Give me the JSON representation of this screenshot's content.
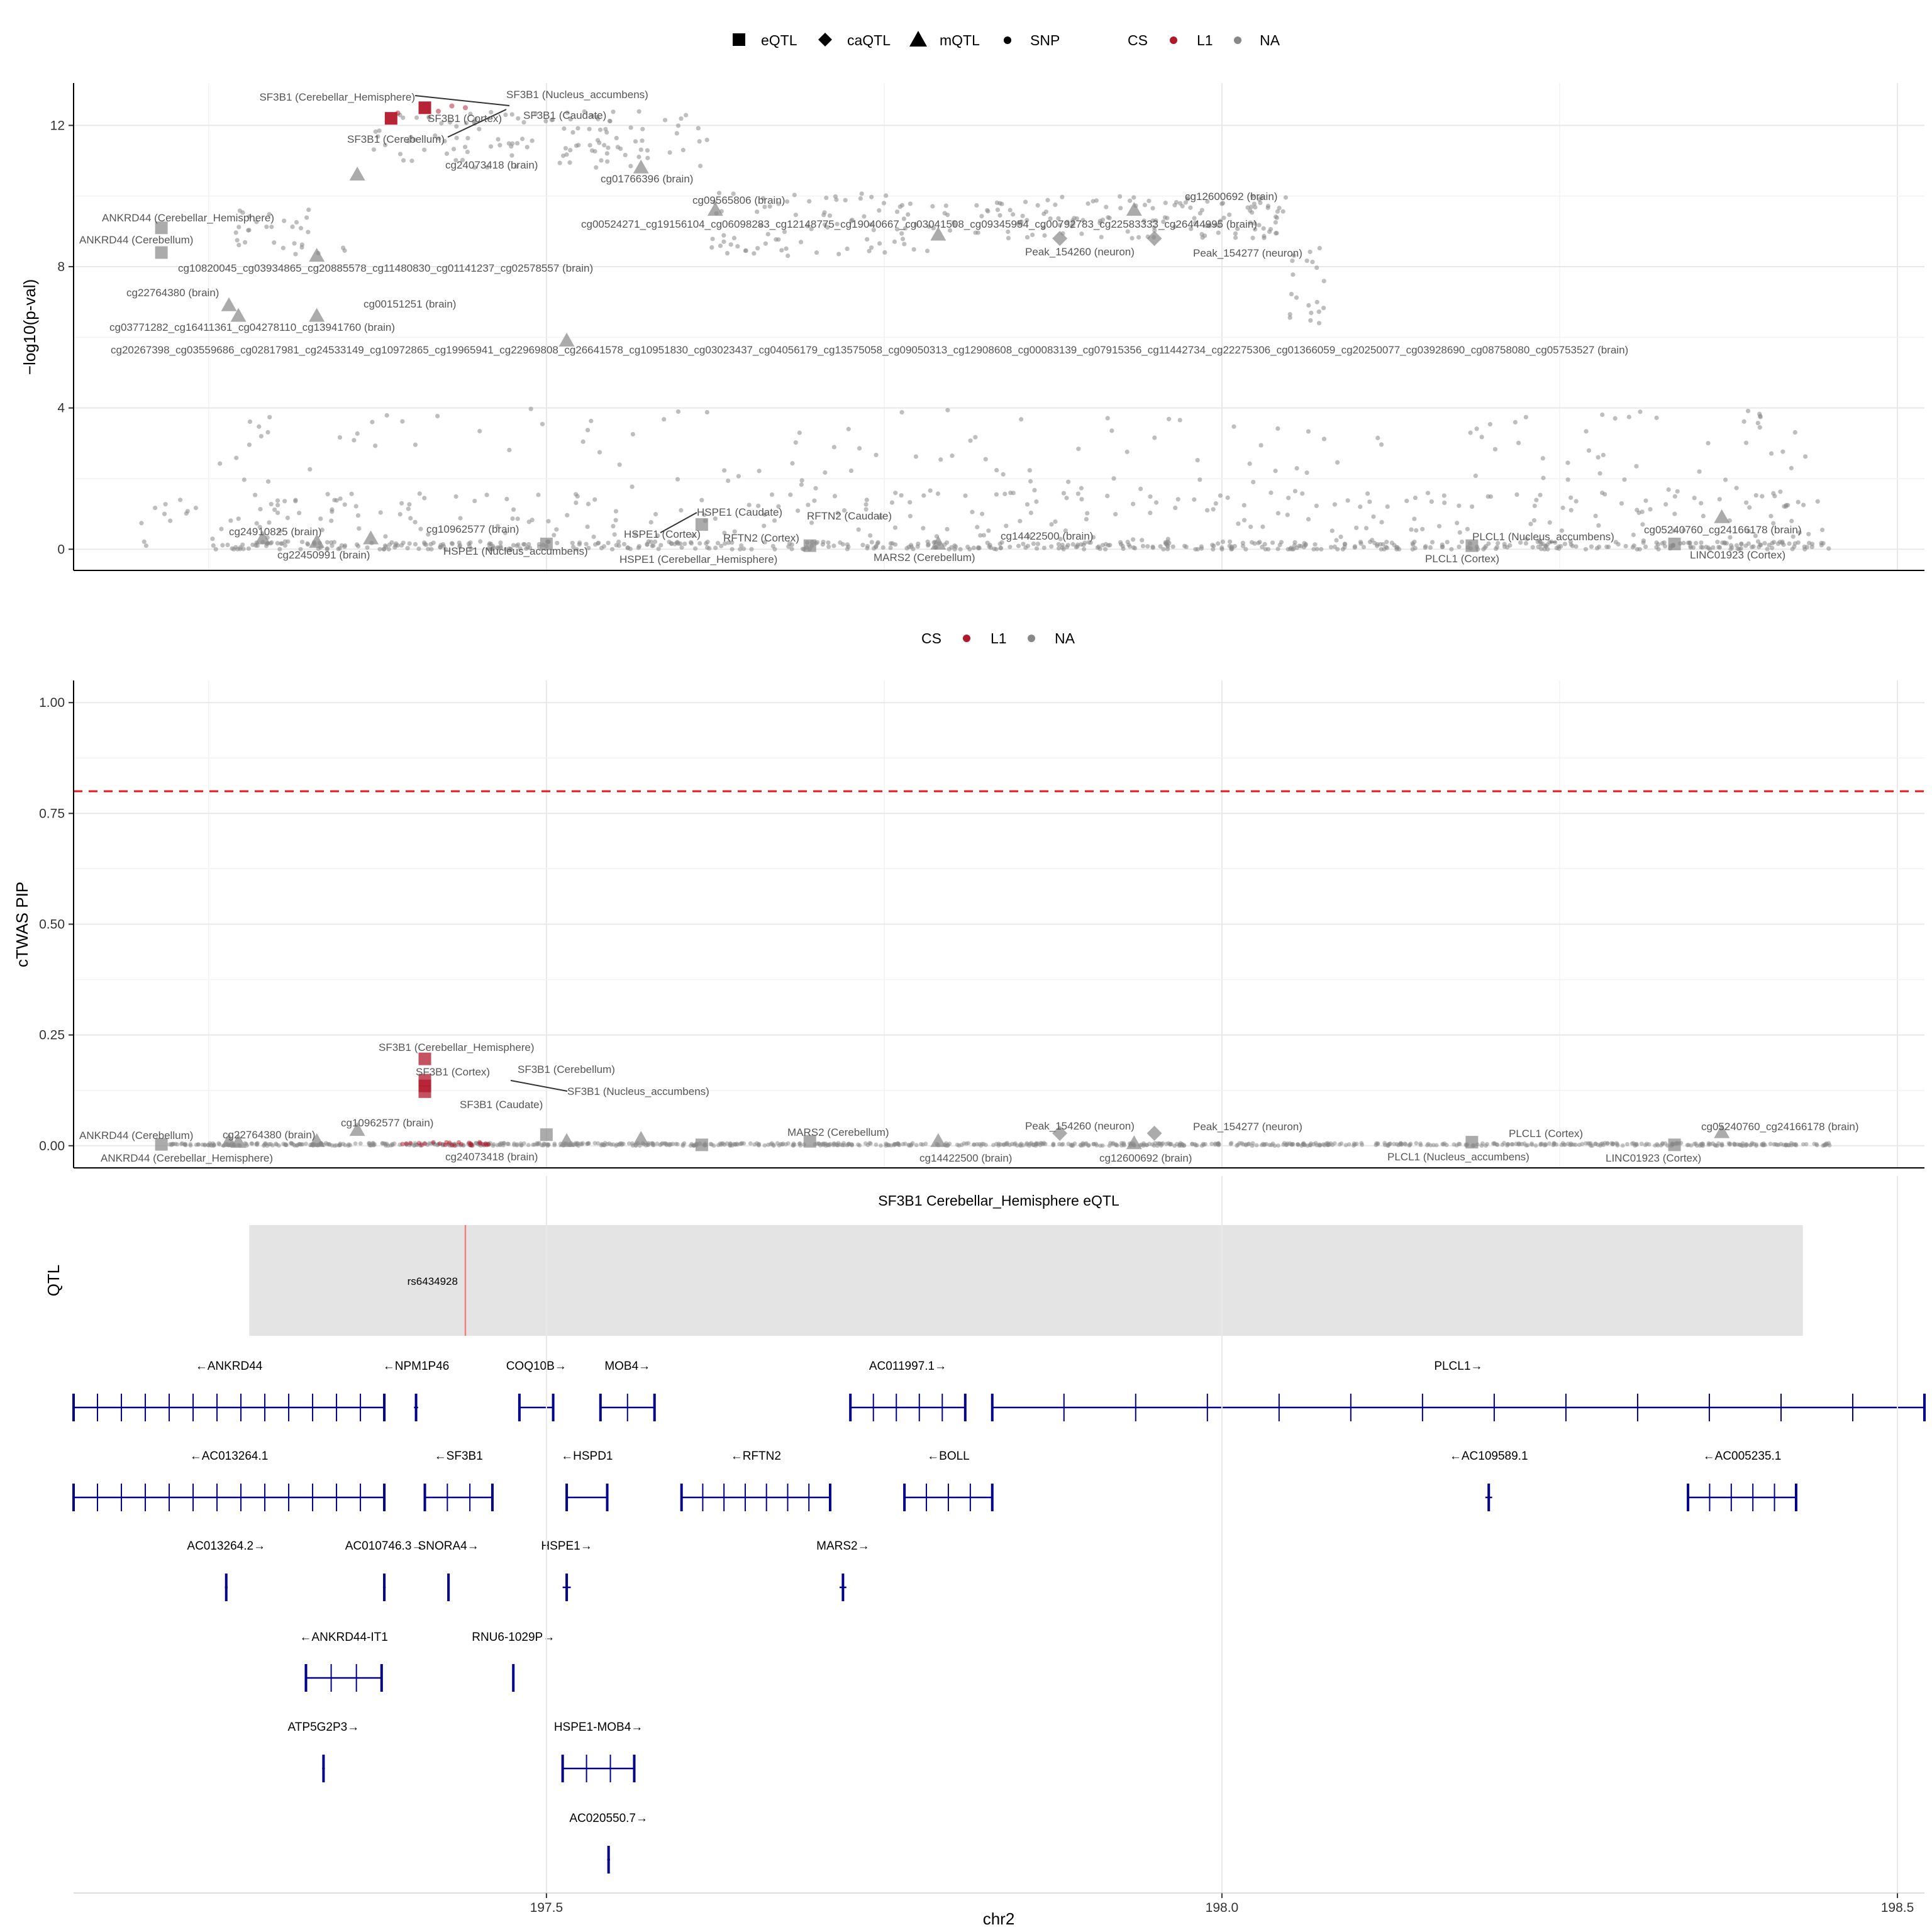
{
  "chart_data": [
    {
      "panel": "qtl_pvalues",
      "type": "scatter",
      "ylabel": "−log10(p-val)",
      "xlim": [
        197.15,
        198.52
      ],
      "ylim": [
        -0.6,
        13.2
      ],
      "yticks": [
        0,
        4,
        8,
        12
      ],
      "legend": {
        "placement": "top",
        "shape_title": "",
        "shapes": [
          {
            "label": "eQTL",
            "shape": "square"
          },
          {
            "label": "caQTL",
            "shape": "diamond"
          },
          {
            "label": "mQTL",
            "shape": "triangle"
          },
          {
            "label": "SNP",
            "shape": "dot"
          }
        ],
        "color_title": "CS",
        "colors": [
          {
            "label": "L1",
            "color": "#b2182b"
          },
          {
            "label": "NA",
            "color": "#888888"
          }
        ]
      },
      "highlight": [
        {
          "x": 197.41,
          "y": 12.5,
          "type": "eQTL",
          "cs": "L1"
        },
        {
          "x": 197.385,
          "y": 12.2,
          "type": "eQTL",
          "cs": "L1"
        },
        {
          "x": 197.39,
          "y": 12.35,
          "type": "SNP",
          "cs": "L1"
        },
        {
          "x": 197.42,
          "y": 12.4,
          "type": "SNP",
          "cs": "L1"
        },
        {
          "x": 197.43,
          "y": 12.55,
          "type": "SNP",
          "cs": "L1"
        },
        {
          "x": 197.44,
          "y": 12.5,
          "type": "SNP",
          "cs": "L1"
        }
      ],
      "features": [
        {
          "x": 197.215,
          "y": 9.1,
          "type": "eQTL"
        },
        {
          "x": 197.215,
          "y": 8.4,
          "type": "eQTL"
        },
        {
          "x": 197.265,
          "y": 6.9,
          "type": "mQTL"
        },
        {
          "x": 197.272,
          "y": 6.6,
          "type": "mQTL"
        },
        {
          "x": 197.36,
          "y": 10.6,
          "type": "mQTL"
        },
        {
          "x": 197.33,
          "y": 8.3,
          "type": "mQTL"
        },
        {
          "x": 197.33,
          "y": 6.6,
          "type": "mQTL"
        },
        {
          "x": 197.515,
          "y": 5.9,
          "type": "mQTL"
        },
        {
          "x": 197.57,
          "y": 10.8,
          "type": "mQTL"
        },
        {
          "x": 197.625,
          "y": 9.6,
          "type": "mQTL"
        },
        {
          "x": 197.79,
          "y": 8.9,
          "type": "mQTL"
        },
        {
          "x": 197.935,
          "y": 9.6,
          "type": "mQTL"
        },
        {
          "x": 197.88,
          "y": 8.8,
          "type": "caQTL"
        },
        {
          "x": 197.95,
          "y": 8.8,
          "type": "caQTL"
        },
        {
          "x": 197.29,
          "y": 0.3,
          "type": "mQTL"
        },
        {
          "x": 197.33,
          "y": 0.2,
          "type": "mQTL"
        },
        {
          "x": 197.37,
          "y": 0.3,
          "type": "mQTL"
        },
        {
          "x": 197.5,
          "y": 0.15,
          "type": "eQTL"
        },
        {
          "x": 197.615,
          "y": 0.7,
          "type": "eQTL"
        },
        {
          "x": 197.695,
          "y": 0.1,
          "type": "eQTL"
        },
        {
          "x": 197.79,
          "y": 0.15,
          "type": "mQTL"
        },
        {
          "x": 198.185,
          "y": 0.1,
          "type": "eQTL"
        },
        {
          "x": 198.335,
          "y": 0.15,
          "type": "eQTL"
        },
        {
          "x": 198.37,
          "y": 0.9,
          "type": "mQTL"
        }
      ],
      "annotations": [
        "SF3B1 (Cerebellar_Hemisphere)",
        "SF3B1 (Nucleus_accumbens)",
        "SF3B1 (Cortex)",
        "SF3B1 (Caudate)",
        "SF3B1 (Cerebellum)",
        "cg24073418 (brain)",
        "cg01766396 (brain)",
        "cg09565806 (brain)",
        "cg12600692 (brain)",
        "cg00524271_cg19156104_cg06098283_cg12148775_cg19040667_cg03041508_cg09345954_cg00792783_cg22583333_cg26444995 (brain)",
        "ANKRD44 (Cerebellar_Hemisphere)",
        "ANKRD44 (Cerebellum)",
        "Peak_154260 (neuron)",
        "Peak_154277 (neuron)",
        "cg10820045_cg03934865_cg20885578_cg11480830_cg01141237_cg02578557 (brain)",
        "cg22764380 (brain)",
        "cg00151251 (brain)",
        "cg03771282_cg16411361_cg04278110_cg13941760 (brain)",
        "cg20267398_cg03559686_cg02817981_cg24533149_cg10972865_cg19965941_cg22969808_cg26641578_cg10951830_cg03023437_cg04056179_cg13575058_cg09050313_cg12908608_cg00083139_cg07915356_cg11442734_cg22275306_cg01366059_cg20250077_cg03928690_cg08758080_cg05753527 (brain)",
        "HSPE1 (Caudate)",
        "RFTN2 (Caudate)",
        "cg24910825 (brain)",
        "cg10962577 (brain)",
        "HSPE1 (Cortex)",
        "RFTN2 (Cortex)",
        "cg14422500 (brain)",
        "PLCL1 (Nucleus_accumbens)",
        "cg05240760_cg24166178 (brain)",
        "cg22450991 (brain)",
        "HSPE1 (Nucleus_accumbens)",
        "HSPE1 (Cerebellar_Hemisphere)",
        "MARS2 (Cerebellum)",
        "PLCL1 (Cortex)",
        "LINC01923 (Cortex)"
      ]
    },
    {
      "panel": "ctwas_pip",
      "type": "scatter",
      "ylabel": "cTWAS PIP",
      "ylim": [
        -0.05,
        1.05
      ],
      "yticks": [
        0.0,
        0.25,
        0.5,
        0.75,
        1.0
      ],
      "ytick_labels": [
        "0.00",
        "0.25",
        "0.50",
        "0.75",
        "1.00"
      ],
      "threshold": 0.8,
      "legend": {
        "placement": "top",
        "color_title": "CS",
        "colors": [
          {
            "label": "L1",
            "color": "#b2182b"
          },
          {
            "label": "NA",
            "color": "#888888"
          }
        ]
      },
      "highlight": [
        {
          "x": 197.41,
          "y": 0.196,
          "type": "eQTL",
          "cs": "L1"
        },
        {
          "x": 197.41,
          "y": 0.148,
          "type": "eQTL",
          "cs": "L1"
        },
        {
          "x": 197.41,
          "y": 0.135,
          "type": "eQTL",
          "cs": "L1"
        },
        {
          "x": 197.41,
          "y": 0.122,
          "type": "eQTL",
          "cs": "L1"
        }
      ],
      "features": [
        {
          "x": 197.215,
          "y": 0.003,
          "type": "eQTL"
        },
        {
          "x": 197.265,
          "y": 0.01,
          "type": "mQTL"
        },
        {
          "x": 197.272,
          "y": 0.008,
          "type": "mQTL"
        },
        {
          "x": 197.33,
          "y": 0.01,
          "type": "mQTL"
        },
        {
          "x": 197.36,
          "y": 0.035,
          "type": "mQTL"
        },
        {
          "x": 197.5,
          "y": 0.025,
          "type": "eQTL"
        },
        {
          "x": 197.515,
          "y": 0.01,
          "type": "mQTL"
        },
        {
          "x": 197.57,
          "y": 0.015,
          "type": "mQTL"
        },
        {
          "x": 197.615,
          "y": 0.002,
          "type": "eQTL"
        },
        {
          "x": 197.695,
          "y": 0.01,
          "type": "eQTL"
        },
        {
          "x": 197.79,
          "y": 0.01,
          "type": "mQTL"
        },
        {
          "x": 197.88,
          "y": 0.028,
          "type": "caQTL"
        },
        {
          "x": 197.935,
          "y": 0.005,
          "type": "mQTL"
        },
        {
          "x": 197.95,
          "y": 0.028,
          "type": "caQTL"
        },
        {
          "x": 198.185,
          "y": 0.008,
          "type": "eQTL"
        },
        {
          "x": 198.335,
          "y": 0.002,
          "type": "eQTL"
        },
        {
          "x": 198.37,
          "y": 0.03,
          "type": "mQTL"
        }
      ],
      "annotations": [
        "SF3B1 (Cerebellar_Hemisphere)",
        "SF3B1 (Cortex)",
        "SF3B1 (Cerebellum)",
        "SF3B1 (Nucleus_accumbens)",
        "SF3B1 (Caudate)",
        "cg10962577 (brain)",
        "ANKRD44 (Cerebellum)",
        "cg22764380 (brain)",
        "MARS2 (Cerebellum)",
        "Peak_154260 (neuron)",
        "Peak_154277 (neuron)",
        "cg05240760_cg24166178 (brain)",
        "PLCL1 (Cortex)",
        "ANKRD44 (Cerebellar_Hemisphere)",
        "cg24073418 (brain)",
        "cg14422500 (brain)",
        "cg12600692 (brain)",
        "PLCL1 (Nucleus_accumbens)",
        "LINC01923 (Cortex)"
      ]
    },
    {
      "panel": "qtl_track",
      "type": "track",
      "title": "SF3B1 Cerebellar_Hemisphere eQTL",
      "ylabel": "QTL",
      "range": [
        197.28,
        198.43
      ],
      "snps": [
        {
          "label": "rs6434928",
          "x": 197.44
        }
      ]
    },
    {
      "panel": "genes",
      "type": "gene_track",
      "xlabel": "chr2",
      "xticks": [
        197.5,
        198.0,
        198.5
      ],
      "xtick_labels": [
        "197.5",
        "198.0",
        "198.5"
      ],
      "genes": [
        {
          "name": "←ANKRD44",
          "start": 197.15,
          "end": 197.38,
          "row": 0
        },
        {
          "name": "←NPM1P46",
          "start": 197.402,
          "end": 197.405,
          "row": 0
        },
        {
          "name": "COQ10B→",
          "start": 197.48,
          "end": 197.505,
          "row": 0
        },
        {
          "name": "MOB4→",
          "start": 197.54,
          "end": 197.58,
          "row": 0
        },
        {
          "name": "AC011997.1→",
          "start": 197.725,
          "end": 197.81,
          "row": 0
        },
        {
          "name": "PLCL1→",
          "start": 197.83,
          "end": 198.52,
          "row": 0
        },
        {
          "name": "←AC013264.1",
          "start": 197.15,
          "end": 197.38,
          "row": 1
        },
        {
          "name": "←SF3B1",
          "start": 197.41,
          "end": 197.46,
          "row": 1
        },
        {
          "name": "←HSPD1",
          "start": 197.515,
          "end": 197.545,
          "row": 1
        },
        {
          "name": "←RFTN2",
          "start": 197.6,
          "end": 197.71,
          "row": 1
        },
        {
          "name": "←BOLL",
          "start": 197.765,
          "end": 197.83,
          "row": 1
        },
        {
          "name": "←AC109589.1",
          "start": 198.195,
          "end": 198.2,
          "row": 1
        },
        {
          "name": "←AC005235.1",
          "start": 198.345,
          "end": 198.425,
          "row": 1
        },
        {
          "name": "AC013264.2→",
          "start": 197.262,
          "end": 197.264,
          "row": 2
        },
        {
          "name": "AC010746.3→",
          "start": 197.379,
          "end": 197.381,
          "row": 2
        },
        {
          "name": "SNORA4→",
          "start": 197.427,
          "end": 197.428,
          "row": 2
        },
        {
          "name": "HSPE1→",
          "start": 197.512,
          "end": 197.518,
          "row": 2
        },
        {
          "name": "MARS2→",
          "start": 197.717,
          "end": 197.722,
          "row": 2
        },
        {
          "name": "←ANKRD44-IT1",
          "start": 197.322,
          "end": 197.378,
          "row": 3
        },
        {
          "name": "RNU6-1029P→",
          "start": 197.475,
          "end": 197.476,
          "row": 3
        },
        {
          "name": "ATP5G2P3→",
          "start": 197.334,
          "end": 197.336,
          "row": 4
        },
        {
          "name": "HSPE1-MOB4→",
          "start": 197.512,
          "end": 197.565,
          "row": 4
        },
        {
          "name": "AC020550.7→",
          "start": 197.545,
          "end": 197.547,
          "row": 5
        }
      ]
    }
  ],
  "palette": {
    "cs_l1": "#b2182b",
    "cs_na": "#888888",
    "threshold_line": "#e8171b",
    "gene_color": "#00008b",
    "qtl_band": "#e4e4e4",
    "snp_line": "#f08080"
  }
}
